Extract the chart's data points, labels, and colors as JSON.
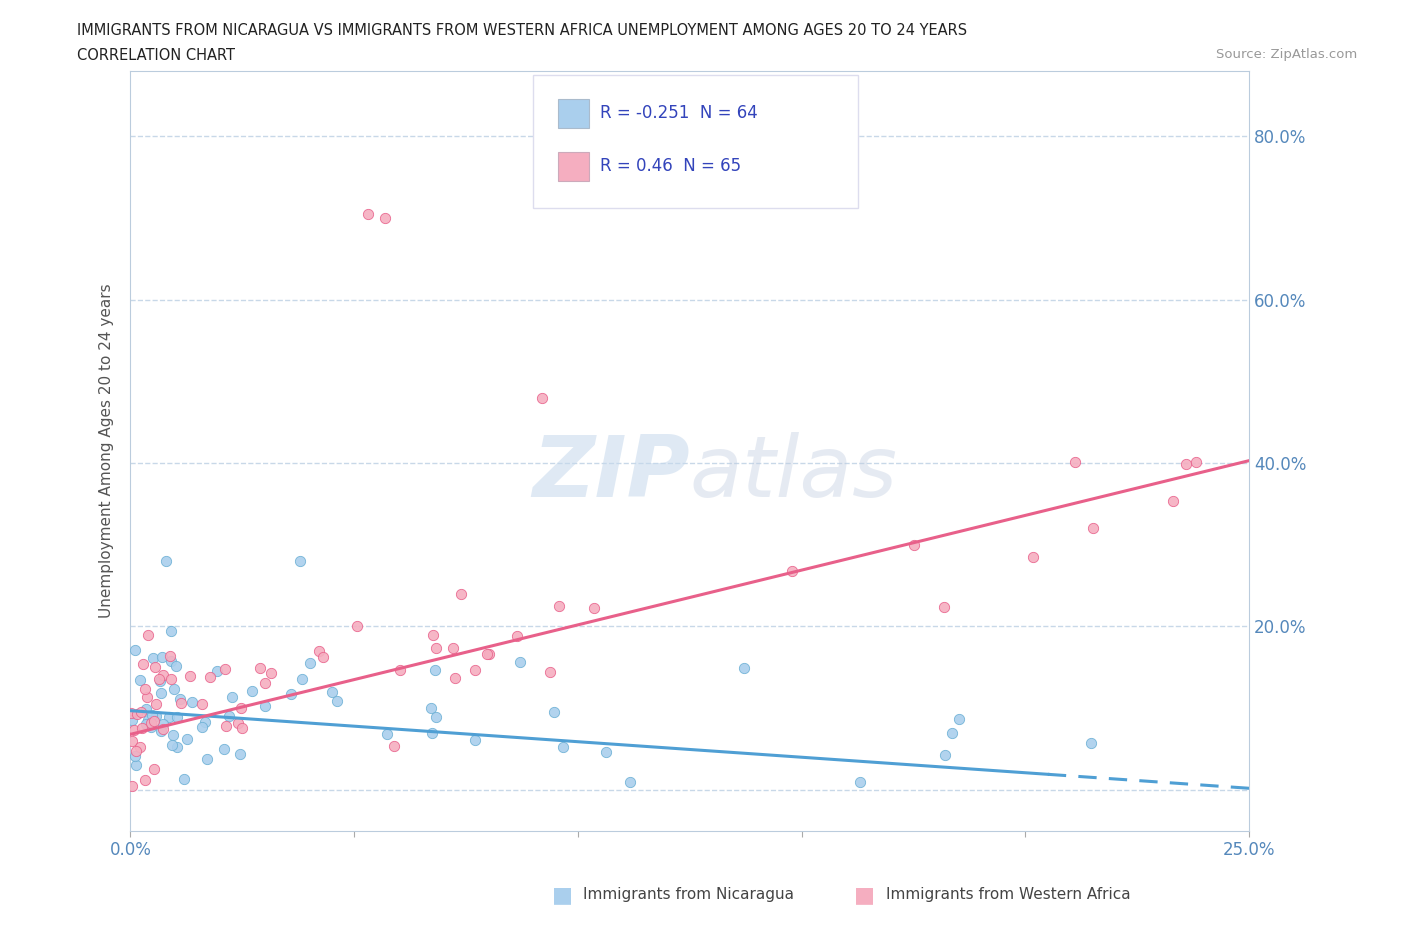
{
  "title_line1": "IMMIGRANTS FROM NICARAGUA VS IMMIGRANTS FROM WESTERN AFRICA UNEMPLOYMENT AMONG AGES 20 TO 24 YEARS",
  "title_line2": "CORRELATION CHART",
  "source_text": "Source: ZipAtlas.com",
  "ylabel": "Unemployment Among Ages 20 to 24 years",
  "xlim": [
    0.0,
    0.25
  ],
  "ylim": [
    -0.05,
    0.88
  ],
  "xticks": [
    0.0,
    0.05,
    0.1,
    0.15,
    0.2,
    0.25
  ],
  "yticks": [
    0.0,
    0.2,
    0.4,
    0.6,
    0.8
  ],
  "xtick_labels": [
    "0.0%",
    "",
    "",
    "",
    "",
    "25.0%"
  ],
  "ytick_labels": [
    "",
    "20.0%",
    "40.0%",
    "60.0%",
    "80.0%"
  ],
  "nicaragua_color": "#aacfed",
  "western_africa_color": "#f5aec0",
  "nicaragua_edge_color": "#6aafd4",
  "western_africa_edge_color": "#e8608a",
  "nicaragua_line_color": "#4f9fd4",
  "western_africa_line_color": "#e8608a",
  "nicaragua_R": -0.251,
  "nicaragua_N": 64,
  "western_africa_R": 0.46,
  "western_africa_N": 65,
  "legend_text_color": "#3344bb",
  "watermark_color": "#c8ddf0",
  "background_color": "#ffffff",
  "grid_color": "#c8d8e8",
  "tick_color": "#5588bb",
  "bottom_legend_nic": "Immigrants from Nicaragua",
  "bottom_legend_waf": "Immigrants from Western Africa"
}
